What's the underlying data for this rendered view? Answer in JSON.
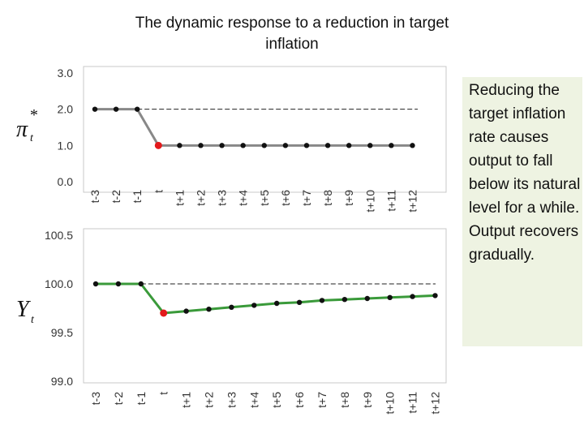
{
  "title": "The dynamic response to a reduction in target inflation",
  "note": "Reducing the target inflation rate causes output to fall below its natural level for a while. Output recovers gradually.",
  "colors": {
    "top_line": "#888888",
    "bottom_line": "#3a9a3a",
    "point": "#111111",
    "highlight": "#e31a1c",
    "frame": "#c8c8c8"
  },
  "chart_data": [
    {
      "type": "line",
      "ylabel": "π*t",
      "categories": [
        "t-3",
        "t-2",
        "t-1",
        "t",
        "t+1",
        "t+2",
        "t+3",
        "t+4",
        "t+5",
        "t+6",
        "t+7",
        "t+8",
        "t+9",
        "t+10",
        "t+11",
        "t+12"
      ],
      "values": [
        2.0,
        2.0,
        2.0,
        1.0,
        1.0,
        1.0,
        1.0,
        1.0,
        1.0,
        1.0,
        1.0,
        1.0,
        1.0,
        1.0,
        1.0,
        1.0
      ],
      "yticks": [
        "0.0",
        "1.0",
        "2.0",
        "3.0"
      ],
      "ylim": [
        0,
        3
      ],
      "reference_line": 2.0,
      "highlight_index": 3,
      "grid": false
    },
    {
      "type": "line",
      "ylabel": "Yt",
      "categories": [
        "t-3",
        "t-2",
        "t-1",
        "t",
        "t+1",
        "t+2",
        "t+3",
        "t+4",
        "t+5",
        "t+6",
        "t+7",
        "t+8",
        "t+9",
        "t+10",
        "t+11",
        "t+12"
      ],
      "values": [
        100.0,
        100.0,
        100.0,
        99.7,
        99.72,
        99.74,
        99.76,
        99.78,
        99.8,
        99.81,
        99.83,
        99.84,
        99.85,
        99.86,
        99.87,
        99.88
      ],
      "yticks": [
        "99.0",
        "99.5",
        "100.0",
        "100.5"
      ],
      "ylim": [
        99.0,
        100.5
      ],
      "reference_line": 100.0,
      "highlight_index": 3,
      "grid": false
    }
  ]
}
